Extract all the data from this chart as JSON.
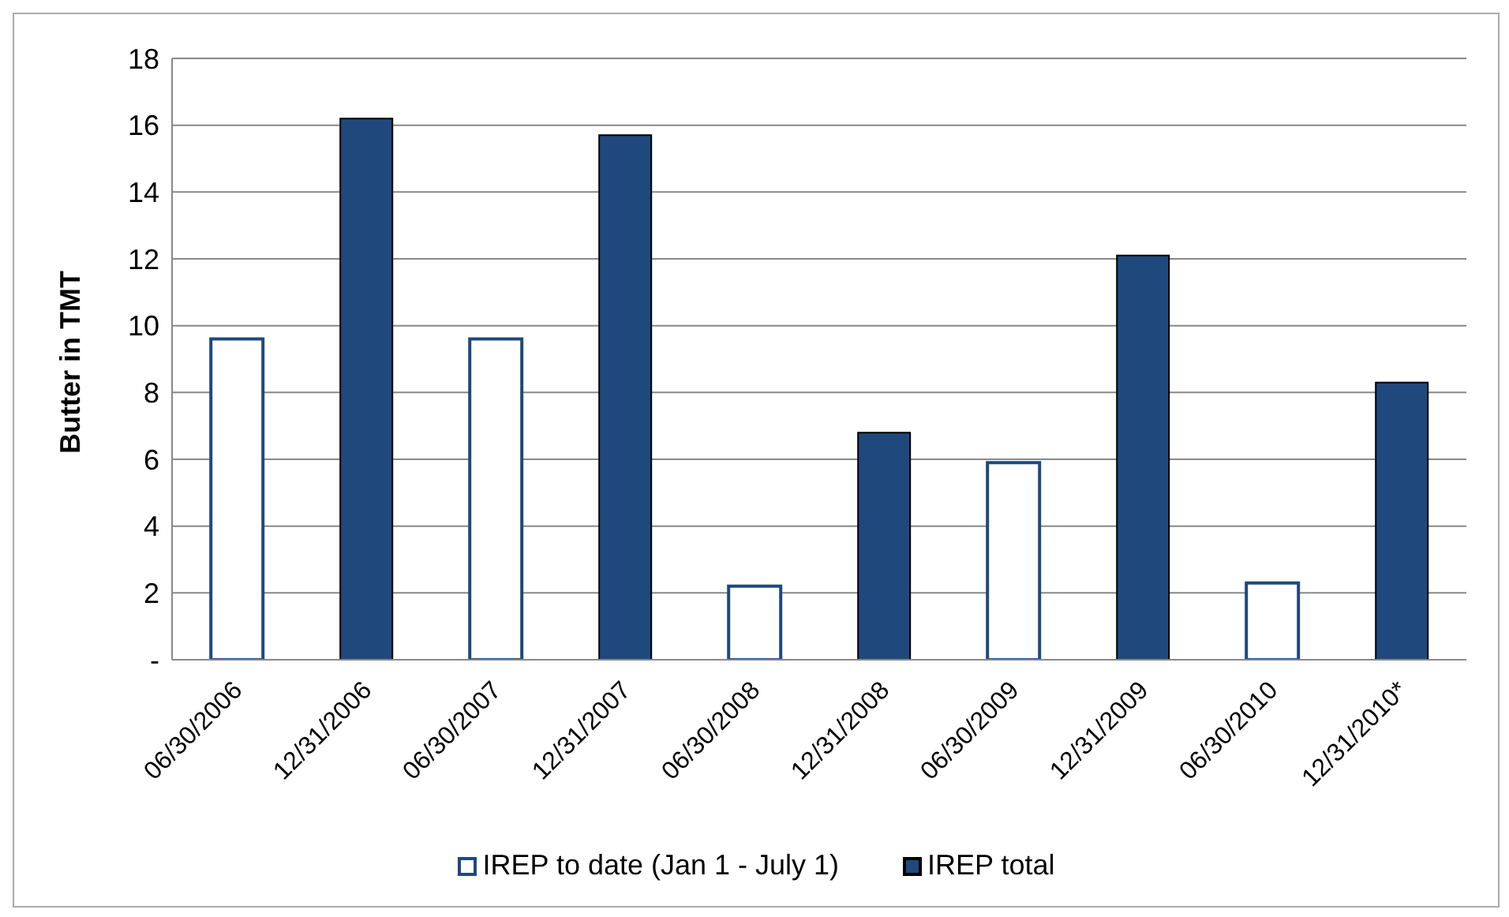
{
  "chart_data": {
    "type": "bar",
    "ylabel": "Butter in TMT",
    "categories": [
      "06/30/2006",
      "12/31/2006",
      "06/30/2007",
      "12/31/2007",
      "06/30/2008",
      "12/31/2008",
      "06/30/2009",
      "12/31/2009",
      "06/30/2010",
      "12/31/2010*"
    ],
    "series": [
      {
        "name": "IREP to date (Jan 1 - July 1)",
        "color": "#ffffff",
        "values": [
          9.6,
          null,
          9.6,
          null,
          2.2,
          null,
          5.9,
          null,
          2.3,
          null
        ]
      },
      {
        "name": "IREP total",
        "color": "#1f497d",
        "values": [
          null,
          16.2,
          null,
          15.7,
          null,
          6.8,
          null,
          12.1,
          null,
          8.3
        ]
      }
    ],
    "ylim": [
      0,
      18
    ],
    "yticks": [
      {
        "value": 0,
        "label": "-"
      },
      2,
      4,
      6,
      8,
      10,
      12,
      14,
      16,
      18
    ],
    "grid": "y",
    "legend": "bottom"
  }
}
